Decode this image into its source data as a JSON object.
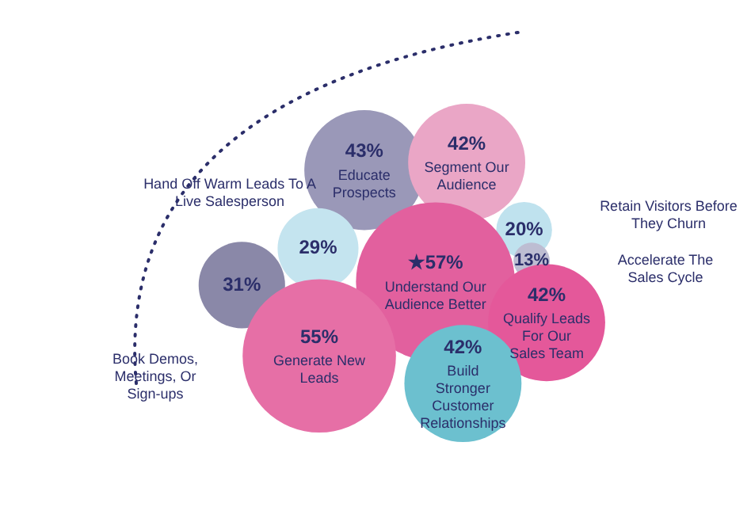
{
  "chart_data": {
    "type": "other",
    "categories": [
      "Educate Prospects",
      "Segment Our Audience",
      "Retain Visitors Before They Churn",
      "Hand Off Warm Leads To A Live Salesperson",
      "Accelerate The Sales Cycle",
      "Understand Our Audience Better",
      "Book Demos, Meetings, Or Sign-ups",
      "Qualify Leads For Our Sales Team",
      "Generate New Leads",
      "Build Stronger Customer Relationships"
    ],
    "values": [
      43,
      42,
      20,
      29,
      13,
      57,
      31,
      42,
      55,
      42
    ],
    "value_labels": [
      "43%",
      "42%",
      "20%",
      "29%",
      "13%",
      "★57%",
      "31%",
      "42%",
      "55%",
      "42%"
    ],
    "colors": [
      "#9a98b8",
      "#eaa6c6",
      "#bfe2ee",
      "#c4e4ef",
      "#bdbdd2",
      "#e2609e",
      "#8a88a8",
      "#e4589a",
      "#e66fa6",
      "#6cc0cf"
    ]
  }
}
